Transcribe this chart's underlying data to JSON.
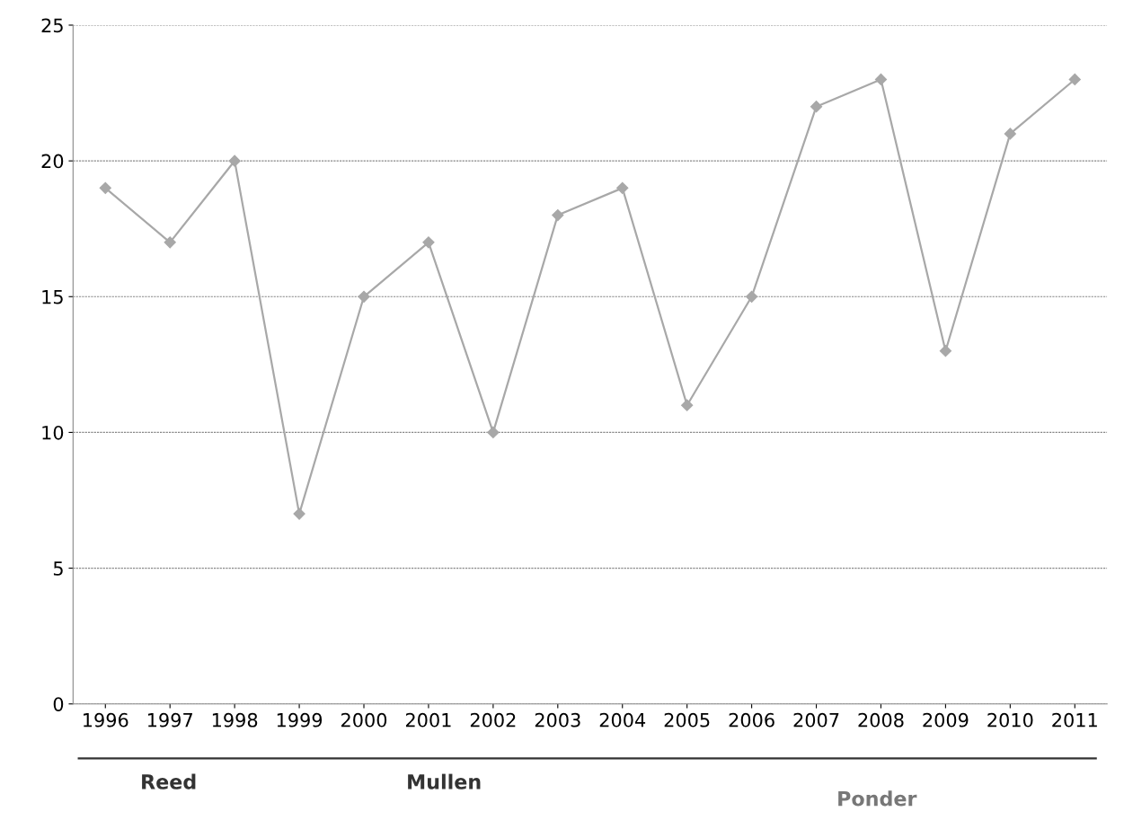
{
  "chart_data": {
    "type": "line",
    "categories": [
      "1996",
      "1997",
      "1998",
      "1999",
      "2000",
      "2001",
      "2002",
      "2003",
      "2004",
      "2005",
      "2006",
      "2007",
      "2008",
      "2009",
      "2010",
      "2011"
    ],
    "series": [
      {
        "color": "#a8a8a8",
        "values": [
          19,
          17,
          20,
          7,
          15,
          17,
          10,
          18,
          19,
          11,
          15,
          22,
          23,
          13,
          21,
          23
        ]
      }
    ],
    "ylim": [
      0,
      25
    ],
    "yticks": [
      0,
      5,
      10,
      15,
      20,
      25
    ],
    "grid": "y",
    "marker": "diamond",
    "line_style": "solid",
    "annotations": [
      "Reed",
      "Mullen",
      "Ponder"
    ]
  }
}
